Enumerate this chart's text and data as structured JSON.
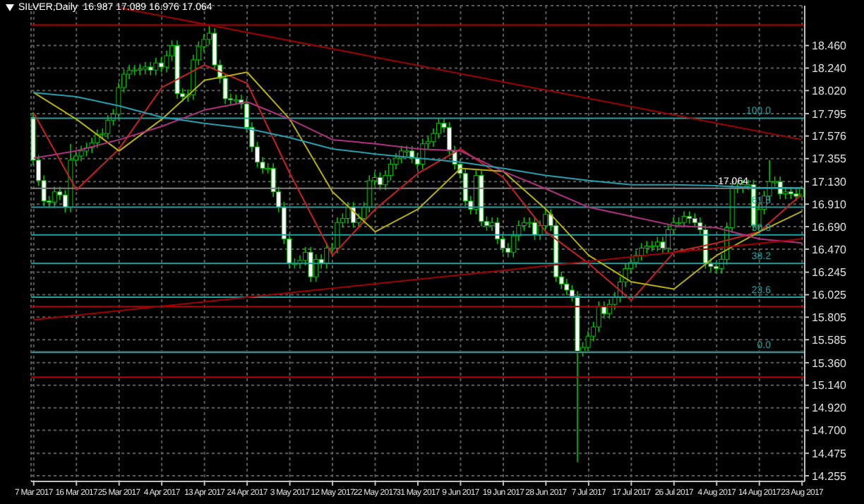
{
  "chart_data": {
    "type": "candlestick",
    "title": "SILVER,Daily  16.987 17.089 16.976 17.064",
    "color": "#00c000",
    "categories": [
      "7 Mar 2017",
      null,
      null,
      null,
      null,
      null,
      null,
      null,
      "16 Mar 2017",
      null,
      null,
      null,
      null,
      null,
      null,
      null,
      "25 Mar 2017",
      null,
      null,
      null,
      null,
      null,
      null,
      null,
      "4 Apr 2017",
      null,
      null,
      null,
      null,
      null,
      null,
      null,
      "13 Apr 2017",
      null,
      null,
      null,
      null,
      null,
      null,
      null,
      "24 Apr 2017",
      null,
      null,
      null,
      null,
      null,
      null,
      null,
      "3 May 2017",
      null,
      null,
      null,
      null,
      null,
      null,
      null,
      "12 May 2017",
      null,
      null,
      null,
      null,
      null,
      null,
      null,
      "22 May 2017",
      null,
      null,
      null,
      null,
      null,
      null,
      null,
      "31 May 2017",
      null,
      null,
      null,
      null,
      null,
      null,
      null,
      "9 Jun 2017",
      null,
      null,
      null,
      null,
      null,
      null,
      null,
      "19 Jun 2017",
      null,
      null,
      null,
      null,
      null,
      null,
      null,
      "28 Jun 2017",
      null,
      null,
      null,
      null,
      null,
      null,
      null,
      "7 Jul 2017",
      null,
      null,
      null,
      null,
      null,
      null,
      null,
      "17 Jul 2017",
      null,
      null,
      null,
      null,
      null,
      null,
      null,
      "26 Jul 2017",
      null,
      null,
      null,
      null,
      null,
      null,
      null,
      "4 Aug 2017",
      null,
      null,
      null,
      null,
      null,
      null,
      null,
      "14 Aug 2017",
      null,
      null,
      null,
      null,
      null,
      null,
      null,
      "23 Aug 2017"
    ],
    "ohlc": [
      [
        17.76,
        17.81,
        17.29,
        17.34
      ],
      [
        17.34,
        17.39,
        17.09,
        17.14
      ],
      [
        17.14,
        17.19,
        16.89,
        16.94
      ],
      [
        16.94,
        16.99,
        16.88,
        16.93
      ],
      [
        16.93,
        17.08,
        16.88,
        17.03
      ],
      [
        17.03,
        17.08,
        16.95,
        17.0
      ],
      [
        17.0,
        17.05,
        16.83,
        16.88
      ],
      [
        16.88,
        17.5,
        16.83,
        17.34
      ],
      [
        17.34,
        17.43,
        17.29,
        17.38
      ],
      [
        17.38,
        17.48,
        17.33,
        17.43
      ],
      [
        17.43,
        17.51,
        17.38,
        17.46
      ],
      [
        17.46,
        17.56,
        17.41,
        17.51
      ],
      [
        17.51,
        17.64,
        17.46,
        17.59
      ],
      [
        17.59,
        17.65,
        17.54,
        17.6
      ],
      [
        17.6,
        17.78,
        17.55,
        17.73
      ],
      [
        17.73,
        17.84,
        17.68,
        17.79
      ],
      [
        17.79,
        18.1,
        17.74,
        18.05
      ],
      [
        18.05,
        18.23,
        18.0,
        18.18
      ],
      [
        18.18,
        18.27,
        18.13,
        18.22
      ],
      [
        18.22,
        18.27,
        18.17,
        18.22
      ],
      [
        18.22,
        18.28,
        18.17,
        18.23
      ],
      [
        18.23,
        18.3,
        18.18,
        18.25
      ],
      [
        18.25,
        18.3,
        18.17,
        18.22
      ],
      [
        18.22,
        18.34,
        18.17,
        18.29
      ],
      [
        18.29,
        18.34,
        18.2,
        18.25
      ],
      [
        18.25,
        18.41,
        18.2,
        18.36
      ],
      [
        18.36,
        18.51,
        18.31,
        18.46
      ],
      [
        18.46,
        18.51,
        17.94,
        17.99
      ],
      [
        17.99,
        18.04,
        17.91,
        17.96
      ],
      [
        17.96,
        18.03,
        17.91,
        17.98
      ],
      [
        17.98,
        18.37,
        17.93,
        18.32
      ],
      [
        18.32,
        18.5,
        18.27,
        18.45
      ],
      [
        18.45,
        18.57,
        18.4,
        18.52
      ],
      [
        18.52,
        18.65,
        18.47,
        18.58
      ],
      [
        18.58,
        18.63,
        18.22,
        18.27
      ],
      [
        18.27,
        18.32,
        18.09,
        18.14
      ],
      [
        18.14,
        18.19,
        17.89,
        17.94
      ],
      [
        17.94,
        17.99,
        17.88,
        17.93
      ],
      [
        17.93,
        17.98,
        17.88,
        17.93
      ],
      [
        17.93,
        17.98,
        17.84,
        17.89
      ],
      [
        17.89,
        17.94,
        17.61,
        17.66
      ],
      [
        17.66,
        17.71,
        17.42,
        17.47
      ],
      [
        17.47,
        17.52,
        17.27,
        17.32
      ],
      [
        17.32,
        17.37,
        17.21,
        17.26
      ],
      [
        17.26,
        17.31,
        17.21,
        17.26
      ],
      [
        17.26,
        17.31,
        16.98,
        17.03
      ],
      [
        17.03,
        17.08,
        16.83,
        16.88
      ],
      [
        16.88,
        16.93,
        16.52,
        16.57
      ],
      [
        16.57,
        16.62,
        16.28,
        16.33
      ],
      [
        16.33,
        16.38,
        16.28,
        16.33
      ],
      [
        16.33,
        16.41,
        16.28,
        16.36
      ],
      [
        16.36,
        16.49,
        16.31,
        16.44
      ],
      [
        16.44,
        16.49,
        16.15,
        16.2
      ],
      [
        16.2,
        16.42,
        16.15,
        16.37
      ],
      [
        16.37,
        16.42,
        16.28,
        16.33
      ],
      [
        16.33,
        16.53,
        16.28,
        16.48
      ],
      [
        16.48,
        16.53,
        16.43,
        16.48
      ],
      [
        16.48,
        16.78,
        16.43,
        16.73
      ],
      [
        16.73,
        16.82,
        16.68,
        16.77
      ],
      [
        16.77,
        16.93,
        16.72,
        16.88
      ],
      [
        16.88,
        16.93,
        16.68,
        16.73
      ],
      [
        16.73,
        16.82,
        16.68,
        16.77
      ],
      [
        16.77,
        16.93,
        16.72,
        16.88
      ],
      [
        16.88,
        17.19,
        16.83,
        17.14
      ],
      [
        17.14,
        17.22,
        17.09,
        17.17
      ],
      [
        17.17,
        17.22,
        17.05,
        17.1
      ],
      [
        17.1,
        17.24,
        17.05,
        17.19
      ],
      [
        17.19,
        17.35,
        17.14,
        17.3
      ],
      [
        17.3,
        17.41,
        17.25,
        17.36
      ],
      [
        17.36,
        17.48,
        17.31,
        17.43
      ],
      [
        17.43,
        17.48,
        17.38,
        17.43
      ],
      [
        17.43,
        17.48,
        17.31,
        17.36
      ],
      [
        17.36,
        17.41,
        17.25,
        17.3
      ],
      [
        17.3,
        17.55,
        17.25,
        17.5
      ],
      [
        17.5,
        17.57,
        17.45,
        17.52
      ],
      [
        17.52,
        17.65,
        17.47,
        17.6
      ],
      [
        17.6,
        17.75,
        17.55,
        17.7
      ],
      [
        17.7,
        17.75,
        17.61,
        17.66
      ],
      [
        17.66,
        17.71,
        17.38,
        17.43
      ],
      [
        17.43,
        17.48,
        17.25,
        17.3
      ],
      [
        17.3,
        17.35,
        17.16,
        17.21
      ],
      [
        17.21,
        17.26,
        16.89,
        16.94
      ],
      [
        16.94,
        16.99,
        16.81,
        16.86
      ],
      [
        16.86,
        17.24,
        16.81,
        17.19
      ],
      [
        17.19,
        17.24,
        16.69,
        16.74
      ],
      [
        16.74,
        16.79,
        16.65,
        16.7
      ],
      [
        16.7,
        16.78,
        16.65,
        16.73
      ],
      [
        16.73,
        16.78,
        16.52,
        16.57
      ],
      [
        16.57,
        16.62,
        16.43,
        16.48
      ],
      [
        16.48,
        16.53,
        16.39,
        16.44
      ],
      [
        16.44,
        16.65,
        16.39,
        16.6
      ],
      [
        16.6,
        16.75,
        16.55,
        16.7
      ],
      [
        16.7,
        16.78,
        16.65,
        16.73
      ],
      [
        16.73,
        16.78,
        16.68,
        16.73
      ],
      [
        16.73,
        16.78,
        16.56,
        16.61
      ],
      [
        16.61,
        16.75,
        16.56,
        16.7
      ],
      [
        16.7,
        16.86,
        16.65,
        16.81
      ],
      [
        16.81,
        16.86,
        16.65,
        16.7
      ],
      [
        16.7,
        16.75,
        16.15,
        16.2
      ],
      [
        16.2,
        16.25,
        16.08,
        16.13
      ],
      [
        16.13,
        16.18,
        16.02,
        16.07
      ],
      [
        16.07,
        16.12,
        15.96,
        16.01
      ],
      [
        16.01,
        16.06,
        14.39,
        15.47
      ],
      [
        15.47,
        15.56,
        15.42,
        15.51
      ],
      [
        15.51,
        15.67,
        15.46,
        15.62
      ],
      [
        15.62,
        15.76,
        15.57,
        15.71
      ],
      [
        15.71,
        15.96,
        15.66,
        15.91
      ],
      [
        15.91,
        15.96,
        15.79,
        15.84
      ],
      [
        15.84,
        15.98,
        15.79,
        15.93
      ],
      [
        15.93,
        16.05,
        15.88,
        16.0
      ],
      [
        16.0,
        16.2,
        15.95,
        16.15
      ],
      [
        16.15,
        16.33,
        16.1,
        16.28
      ],
      [
        16.28,
        16.39,
        16.23,
        16.34
      ],
      [
        16.34,
        16.46,
        16.29,
        16.41
      ],
      [
        16.41,
        16.53,
        16.36,
        16.48
      ],
      [
        16.48,
        16.55,
        16.43,
        16.5
      ],
      [
        16.5,
        16.55,
        16.45,
        16.5
      ],
      [
        16.5,
        16.59,
        16.45,
        16.54
      ],
      [
        16.54,
        16.59,
        16.43,
        16.48
      ],
      [
        16.48,
        16.71,
        16.43,
        16.66
      ],
      [
        16.66,
        16.78,
        16.61,
        16.73
      ],
      [
        16.73,
        16.78,
        16.68,
        16.73
      ],
      [
        16.73,
        16.84,
        16.68,
        16.79
      ],
      [
        16.79,
        16.84,
        16.72,
        16.77
      ],
      [
        16.77,
        16.82,
        16.68,
        16.73
      ],
      [
        16.73,
        16.78,
        16.61,
        16.66
      ],
      [
        16.66,
        16.71,
        16.28,
        16.33
      ],
      [
        16.33,
        16.38,
        16.25,
        16.3
      ],
      [
        16.3,
        16.35,
        16.23,
        16.28
      ],
      [
        16.28,
        16.42,
        16.23,
        16.37
      ],
      [
        16.37,
        16.73,
        16.32,
        16.68
      ],
      [
        16.68,
        17.12,
        16.63,
        17.07
      ],
      [
        17.07,
        17.12,
        17.02,
        17.07
      ],
      [
        17.07,
        17.15,
        17.02,
        17.1
      ],
      [
        17.1,
        17.15,
        17.05,
        17.1
      ],
      [
        17.1,
        17.15,
        16.65,
        16.7
      ],
      [
        16.7,
        16.91,
        16.65,
        16.86
      ],
      [
        16.86,
        17.04,
        16.81,
        16.99
      ],
      [
        16.99,
        17.34,
        16.94,
        17.13
      ],
      [
        17.13,
        17.18,
        17.08,
        17.13
      ],
      [
        17.13,
        17.18,
        16.96,
        17.01
      ],
      [
        17.01,
        17.08,
        16.96,
        17.03
      ],
      [
        17.03,
        17.08,
        16.96,
        17.01
      ],
      [
        17.01,
        17.06,
        16.94,
        16.987
      ],
      [
        16.987,
        17.089,
        16.976,
        17.064
      ]
    ],
    "series": [
      {
        "type": "line",
        "color": "#cc2020",
        "x": [
          "7 Mar 2017",
          "16 Mar 2017",
          "25 Mar 2017",
          "4 Apr 2017",
          "13 Apr 2017",
          "24 Apr 2017",
          "3 May 2017",
          "12 May 2017",
          "22 May 2017",
          "31 May 2017",
          "9 Jun 2017",
          "19 Jun 2017",
          "28 Jun 2017",
          "7 Jul 2017",
          "17 Jul 2017",
          "26 Jul 2017",
          "4 Aug 2017",
          "14 Aug 2017",
          "23 Aug 2017"
        ],
        "values": [
          17.8,
          17.05,
          17.45,
          18.05,
          18.27,
          18.09,
          17.21,
          16.41,
          16.86,
          17.21,
          17.45,
          17.17,
          16.64,
          16.33,
          15.97,
          16.44,
          16.53,
          16.64,
          17.01
        ]
      },
      {
        "type": "line",
        "color": "#b8b000",
        "x": [
          "7 Mar 2017",
          "16 Mar 2017",
          "25 Mar 2017",
          "4 Apr 2017",
          "13 Apr 2017",
          "24 Apr 2017",
          "3 May 2017",
          "12 May 2017",
          "22 May 2017",
          "31 May 2017",
          "9 Jun 2017",
          "19 Jun 2017",
          "28 Jun 2017",
          "7 Jul 2017",
          "17 Jul 2017",
          "26 Jul 2017",
          "4 Aug 2017",
          "14 Aug 2017",
          "23 Aug 2017"
        ],
        "values": [
          18.0,
          17.74,
          17.43,
          17.74,
          18.12,
          18.2,
          17.74,
          17.03,
          16.64,
          16.86,
          17.26,
          17.23,
          16.86,
          16.41,
          16.15,
          16.08,
          16.41,
          16.64,
          16.84
        ]
      },
      {
        "type": "line",
        "color": "#b03080",
        "x": [
          "7 Mar 2017",
          "16 Mar 2017",
          "25 Mar 2017",
          "4 Apr 2017",
          "13 Apr 2017",
          "24 Apr 2017",
          "3 May 2017",
          "12 May 2017",
          "22 May 2017",
          "31 May 2017",
          "9 Jun 2017",
          "19 Jun 2017",
          "28 Jun 2017",
          "7 Jul 2017",
          "17 Jul 2017",
          "26 Jul 2017",
          "4 Aug 2017",
          "14 Aug 2017",
          "23 Aug 2017"
        ],
        "values": [
          17.36,
          17.43,
          17.54,
          17.67,
          17.83,
          17.91,
          17.74,
          17.54,
          17.5,
          17.45,
          17.43,
          17.23,
          17.06,
          16.88,
          16.79,
          16.7,
          16.68,
          16.57,
          16.53
        ]
      },
      {
        "type": "line",
        "color": "#20a0b0",
        "x": [
          "7 Mar 2017",
          "16 Mar 2017",
          "25 Mar 2017",
          "4 Apr 2017",
          "13 Apr 2017",
          "24 Apr 2017",
          "3 May 2017",
          "12 May 2017",
          "22 May 2017",
          "31 May 2017",
          "9 Jun 2017",
          "19 Jun 2017",
          "28 Jun 2017",
          "7 Jul 2017",
          "17 Jul 2017",
          "26 Jul 2017",
          "4 Aug 2017",
          "14 Aug 2017",
          "23 Aug 2017"
        ],
        "values": [
          18.0,
          17.96,
          17.87,
          17.76,
          17.7,
          17.65,
          17.56,
          17.45,
          17.4,
          17.36,
          17.32,
          17.26,
          17.19,
          17.14,
          17.1,
          17.1,
          17.09,
          17.07,
          17.07
        ]
      },
      {
        "type": "line",
        "color": "#a00000",
        "x": [
          "25 Mar 2017",
          "23 Aug 2017"
        ],
        "values": [
          18.83,
          17.54
        ]
      },
      {
        "type": "line",
        "color": "#a00000",
        "x": [
          "7 Mar 2017",
          "23 Aug 2017"
        ],
        "values": [
          15.78,
          16.57
        ]
      }
    ],
    "ylim": [
      14.2,
      18.85
    ],
    "yticks": [
      {
        "value": 14.255,
        "label": "14.255"
      },
      {
        "value": 14.475,
        "label": "14.475"
      },
      {
        "value": 14.7,
        "label": "14.700"
      },
      {
        "value": 14.92,
        "label": "14.920"
      },
      {
        "value": 15.14,
        "label": "15.140"
      },
      {
        "value": 15.36,
        "label": "15.360"
      },
      {
        "value": 15.585,
        "label": "15.585"
      },
      {
        "value": 15.805,
        "label": "15.805"
      },
      {
        "value": 16.025,
        "label": "16.025"
      },
      {
        "value": 16.245,
        "label": "16.245"
      },
      {
        "value": 16.47,
        "label": "16.470"
      },
      {
        "value": 16.69,
        "label": "16.690"
      },
      {
        "value": 16.91,
        "label": "16.910"
      },
      {
        "value": 17.13,
        "label": "17.130"
      },
      {
        "value": 17.355,
        "label": "17.355"
      },
      {
        "value": 17.576,
        "label": "17.576"
      },
      {
        "value": 17.795,
        "label": "17.795"
      },
      {
        "value": 18.02,
        "label": "18.020"
      },
      {
        "value": 18.24,
        "label": "18.240"
      },
      {
        "value": 18.46,
        "label": "18.460"
      }
    ],
    "ref_lines": [
      {
        "axis": "y",
        "value": 18.66,
        "color": "#b00000"
      },
      {
        "axis": "y",
        "value": 15.91,
        "color": "#b00000"
      },
      {
        "axis": "y",
        "value": 15.47,
        "color": "#b00000"
      },
      {
        "axis": "y",
        "value": 15.22,
        "color": "#b00000"
      },
      {
        "axis": "y",
        "value": 17.064,
        "label": "17.064",
        "color": "#808080"
      },
      {
        "axis": "y",
        "value": 17.75,
        "color": "#20a0a0"
      },
      {
        "axis": "y",
        "value": 16.88,
        "color": "#20a0a0"
      },
      {
        "axis": "y",
        "value": 16.61,
        "color": "#20a0a0"
      },
      {
        "axis": "y",
        "value": 16.33,
        "color": "#20a0a0"
      },
      {
        "axis": "y",
        "value": 16.0,
        "color": "#20a0a0"
      },
      {
        "axis": "y",
        "value": 15.46,
        "color": "#20a0a0"
      }
    ],
    "annotations": [
      {
        "text": "100.0",
        "y": 17.75
      },
      {
        "text": "61.8",
        "y": 16.88
      },
      {
        "text": "50.0",
        "y": 16.61
      },
      {
        "text": "38.2",
        "y": 16.33
      },
      {
        "text": "23.6",
        "y": 16.0
      },
      {
        "text": "0.0",
        "y": 15.46
      }
    ],
    "grid": true
  }
}
